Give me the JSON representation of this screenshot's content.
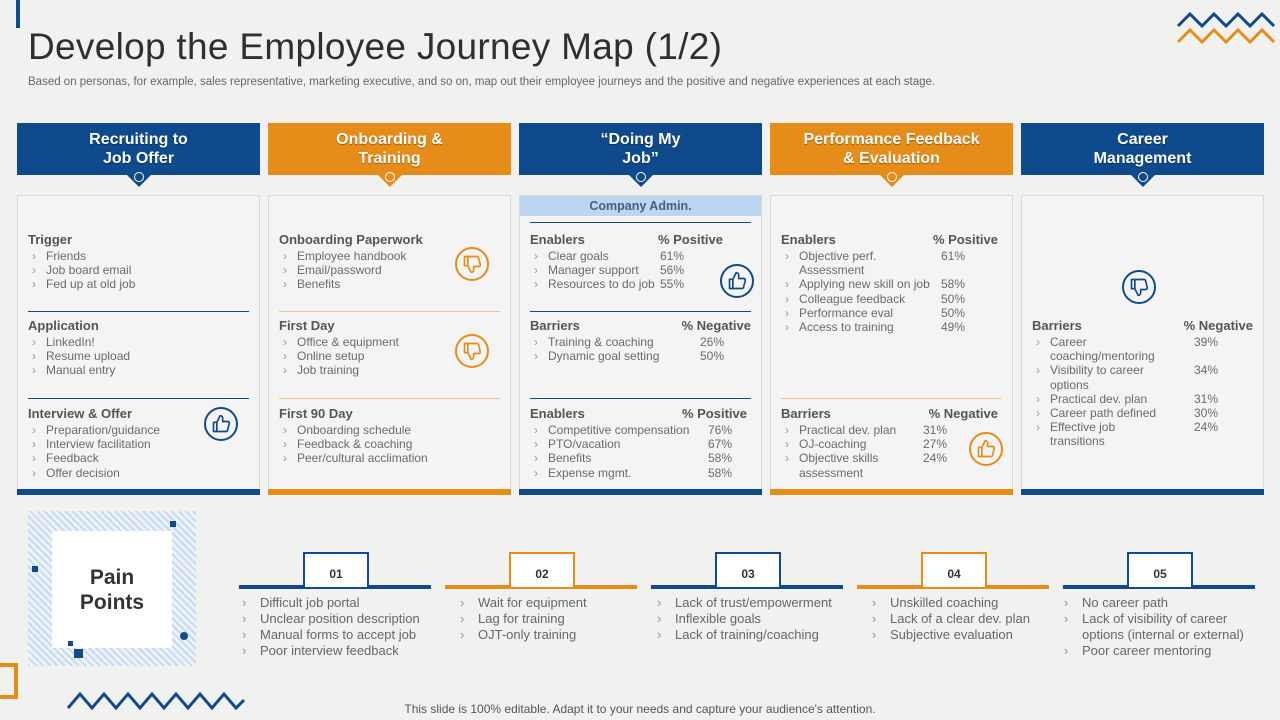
{
  "title": "Develop the Employee Journey Map (1/2)",
  "subtitle": "Based on personas, for example, sales representative, marketing executive, and so on, map out their employee journeys and the positive and negative experiences at each stage.",
  "stages": [
    {
      "title": "Recruiting to Job Offer",
      "color": "#0f4a8c",
      "sections": [
        {
          "heading": "Trigger",
          "items": [
            "Friends",
            "Job board email",
            "Fed up at old job"
          ]
        },
        {
          "heading": "Application",
          "items": [
            "LinkedIn!",
            "Resume upload",
            "Manual entry"
          ]
        },
        {
          "heading": "Interview & Offer",
          "items": [
            "Preparation/guidance",
            "Interview facilitation",
            "Feedback",
            "Offer decision"
          ],
          "icon": "thumbs-up-icon"
        }
      ]
    },
    {
      "title": "Onboarding & Training",
      "color": "#e68c19",
      "sections": [
        {
          "heading": "Onboarding Paperwork",
          "items": [
            "Employee handbook",
            "Email/password",
            "Benefits"
          ],
          "icon": "thumbs-down-icon"
        },
        {
          "heading": "First Day",
          "items": [
            "Office & equipment",
            "Online setup",
            "Job training"
          ],
          "icon": "thumbs-down-icon"
        },
        {
          "heading": "First 90 Day",
          "items": [
            "Onboarding schedule",
            "Feedback & coaching",
            "Peer/cultural acclimation"
          ]
        }
      ]
    },
    {
      "title": "“Doing My Job”",
      "color": "#0f4a8c",
      "band": "Company Admin.",
      "sections": [
        {
          "heading": "Enablers",
          "pct_label": "% Positive",
          "items": [
            {
              "label": "Clear goals",
              "value": "61%"
            },
            {
              "label": "Manager support",
              "value": "56%"
            },
            {
              "label": "Resources to do job",
              "value": "55%"
            }
          ],
          "icon": "thumbs-up-icon"
        },
        {
          "heading": "Barriers",
          "pct_label": "% Negative",
          "items": [
            {
              "label": "Training & coaching",
              "value": "26%"
            },
            {
              "label": "Dynamic goal setting",
              "value": "50%"
            }
          ]
        },
        {
          "heading": "Enablers",
          "pct_label": "% Positive",
          "items": [
            {
              "label": "Competitive compensation",
              "value": "76%"
            },
            {
              "label": "PTO/vacation",
              "value": "67%"
            },
            {
              "label": "Benefits",
              "value": "58%"
            },
            {
              "label": "Expense mgmt.",
              "value": "58%"
            }
          ]
        }
      ]
    },
    {
      "title": "Performance Feedback & Evaluation",
      "color": "#e68c19",
      "sections": [
        {
          "heading": "Enablers",
          "pct_label": "% Positive",
          "items": [
            {
              "label": "Objective perf. Assessment",
              "value": "61%"
            },
            {
              "label": "Applying new skill on job",
              "value": "58%"
            },
            {
              "label": "Colleague feedback",
              "value": "50%"
            },
            {
              "label": "Performance eval",
              "value": "50%"
            },
            {
              "label": "Access to training",
              "value": "49%"
            }
          ]
        },
        {
          "heading": "Barriers",
          "pct_label": "% Negative",
          "items": [
            {
              "label": "Practical dev. plan",
              "value": "31%"
            },
            {
              "label": "OJ-coaching",
              "value": "27%"
            },
            {
              "label": "Objective skills assessment",
              "value": "24%"
            }
          ],
          "icon": "thumbs-up-icon"
        }
      ]
    },
    {
      "title": "Career Management",
      "color": "#0f4a8c",
      "sections": [
        {
          "heading": "Barriers",
          "pct_label": "% Negative",
          "items": [
            {
              "label": "Career coaching/mentoring",
              "value": "39%"
            },
            {
              "label": "Visibility to career options",
              "value": "34%"
            },
            {
              "label": "Practical dev. plan",
              "value": "31%"
            },
            {
              "label": "Career path defined",
              "value": "30%"
            },
            {
              "label": "Effective job transitions",
              "value": "24%"
            }
          ],
          "icon": "thumbs-down-icon"
        }
      ]
    }
  ],
  "pain_points": {
    "label": "Pain Points",
    "columns": [
      {
        "num": "01",
        "color": "#0f4a8c",
        "items": [
          "Difficult job portal",
          "Unclear position description",
          "Manual forms to accept job",
          "Poor interview feedback"
        ]
      },
      {
        "num": "02",
        "color": "#e68c19",
        "items": [
          "Wait for equipment",
          "Lag for training",
          "OJT-only training"
        ]
      },
      {
        "num": "03",
        "color": "#0f4a8c",
        "items": [
          "Lack of trust/empowerment",
          "Inflexible goals",
          "Lack of training/coaching"
        ]
      },
      {
        "num": "04",
        "color": "#e68c19",
        "items": [
          "Unskilled coaching",
          "Lack of a clear dev. plan",
          "Subjective evaluation"
        ]
      },
      {
        "num": "05",
        "color": "#0f4a8c",
        "items": [
          "No career path",
          "Lack of visibility of career options (internal or external)",
          "Poor career mentoring"
        ]
      }
    ]
  },
  "footer": "This slide is 100% editable. Adapt it to your needs and capture your audience's attention."
}
